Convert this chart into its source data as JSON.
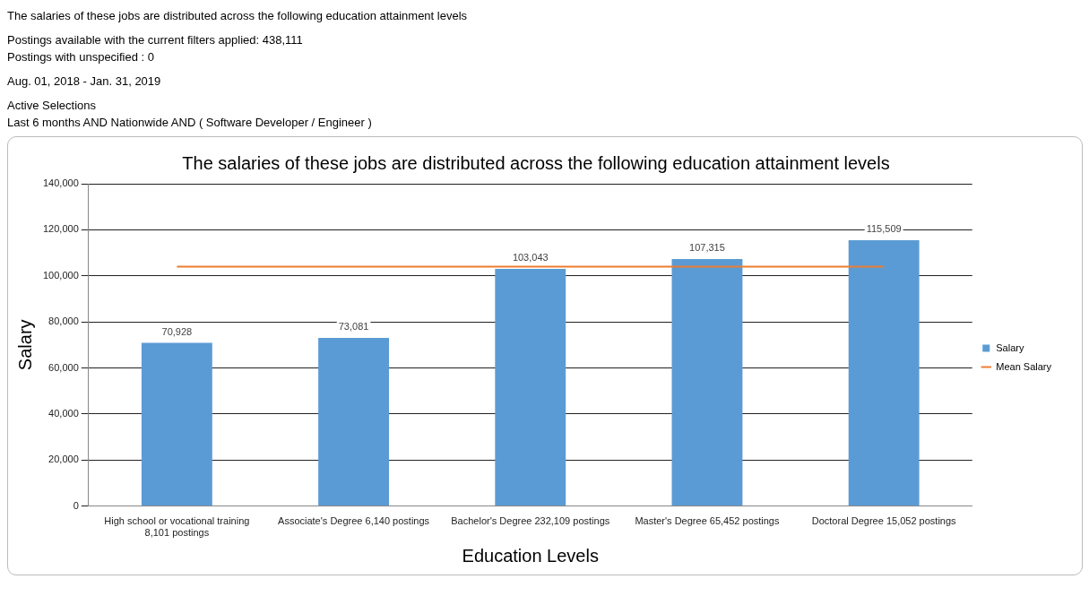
{
  "chart_data": {
    "type": "bar",
    "title": "The salaries of these jobs are distributed across the following education attainment levels",
    "annotations": [
      "The salaries of these jobs are distributed across the following education attainment levels",
      "Postings available with the current filters applied: 438,111",
      "Postings with unspecified : 0",
      "Aug. 01, 2018 - Jan. 31, 2019",
      "Active Selections",
      "Last 6 months AND Nationwide AND ( Software Developer / Engineer )"
    ],
    "xlabel": "Education Levels",
    "ylabel": "Salary",
    "categories": [
      "High school or vocational training 8,101 postings",
      "Associate's Degree 6,140 postings",
      "Bachelor's Degree 232,109 postings",
      "Master's Degree 65,452 postings",
      "Doctoral Degree 15,052 postings"
    ],
    "series": [
      {
        "name": "Salary",
        "color": "#5b9bd5",
        "values": [
          70928,
          73081,
          103043,
          107315,
          115509
        ],
        "value_labels": [
          "70,928",
          "73,081",
          "103,043",
          "107,315",
          "115,509"
        ]
      },
      {
        "name": "Mean Salary",
        "type": "line",
        "color": "#ed7d31",
        "values": [
          104000,
          104000,
          104000,
          104000,
          104000
        ]
      }
    ],
    "ylim": [
      0,
      140000
    ],
    "yticks": [
      0,
      {
        "value": 20000,
        "label": "20,000"
      },
      {
        "value": 40000,
        "label": "40,000"
      },
      {
        "value": 60000,
        "label": "60,000"
      },
      {
        "value": 80000,
        "label": "80,000"
      },
      {
        "value": 100000,
        "label": "100,000"
      },
      {
        "value": 120000,
        "label": "120,000"
      },
      {
        "value": 140000,
        "label": "140,000"
      }
    ],
    "grid": "y",
    "legend": "right",
    "marker": "none"
  }
}
